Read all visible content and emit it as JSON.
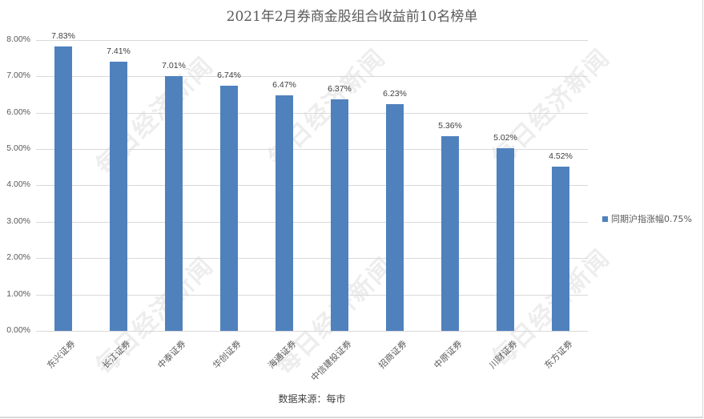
{
  "chart": {
    "title": "2021年2月券商金股组合收益前10名榜单",
    "source": "数据来源：每市",
    "legend_label": "同期沪指涨幅0.75%",
    "bar_color": "#4f81bd",
    "watermark": "每日经济新闻",
    "y_ticks": [
      "0.00%",
      "1.00%",
      "2.00%",
      "3.00%",
      "4.00%",
      "5.00%",
      "6.00%",
      "7.00%",
      "8.00%"
    ]
  },
  "chart_data": {
    "type": "bar",
    "title": "2021年2月券商金股组合收益前10名榜单",
    "xlabel": "",
    "ylabel": "",
    "categories": [
      "东兴证券",
      "长江证券",
      "中泰证券",
      "华创证券",
      "海通证券",
      "中信建投证券",
      "招商证券",
      "中原证券",
      "川财证券",
      "东方证券"
    ],
    "values": [
      7.83,
      7.41,
      7.01,
      6.74,
      6.47,
      6.37,
      6.23,
      5.36,
      5.02,
      4.52
    ],
    "value_labels": [
      "7.83%",
      "7.41%",
      "7.01%",
      "6.74%",
      "6.47%",
      "6.37%",
      "6.23%",
      "5.36%",
      "5.02%",
      "4.52%"
    ],
    "series": [
      {
        "name": "同期沪指涨幅0.75%",
        "values": [
          7.83,
          7.41,
          7.01,
          6.74,
          6.47,
          6.37,
          6.23,
          5.36,
          5.02,
          4.52
        ]
      }
    ],
    "ylim": [
      0,
      8
    ],
    "y_unit": "%",
    "grid": true,
    "legend_position": "right",
    "annotation": "数据来源：每市"
  }
}
